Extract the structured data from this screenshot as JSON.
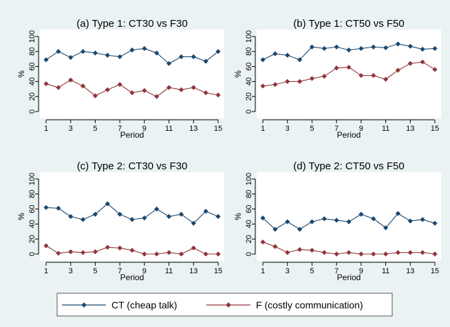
{
  "colors": {
    "background": "#eaf2f3",
    "plot_area": "#ffffff",
    "legend_box": "#ffffff",
    "ct_series": "#1a476f",
    "f_series": "#90353b",
    "axis": "#000000"
  },
  "legend": {
    "placement": "bottom-center",
    "items": [
      {
        "label": "CT (cheap talk)",
        "color": "#1a476f",
        "marker": "diamond"
      },
      {
        "label": "F (costly communication)",
        "color": "#90353b",
        "marker": "diamond"
      }
    ]
  },
  "chart_data": [
    {
      "type": "line",
      "title": "(a) Type 1: CT30 vs F30",
      "xlabel": "Period",
      "ylabel": "%",
      "x": [
        1,
        2,
        3,
        4,
        5,
        6,
        7,
        8,
        9,
        10,
        11,
        12,
        13,
        14,
        15
      ],
      "x_ticks": [
        1,
        3,
        5,
        7,
        9,
        11,
        13,
        15
      ],
      "y_ticks": [
        0,
        20,
        40,
        60,
        80,
        100
      ],
      "xlim": [
        1,
        15
      ],
      "ylim": [
        0,
        100
      ],
      "grid": false,
      "series": [
        {
          "key": "ct",
          "values": [
            69,
            80,
            72,
            80,
            78,
            75,
            73,
            82,
            84,
            78,
            64,
            73,
            73,
            67,
            80
          ]
        },
        {
          "key": "f",
          "values": [
            37,
            32,
            42,
            34,
            21,
            29,
            36,
            25,
            28,
            20,
            32,
            29,
            32,
            25,
            22
          ]
        }
      ]
    },
    {
      "type": "line",
      "title": "(b) Type 1: CT50 vs F50",
      "xlabel": "Period",
      "ylabel": "%",
      "x": [
        1,
        2,
        3,
        4,
        5,
        6,
        7,
        8,
        9,
        10,
        11,
        12,
        13,
        14,
        15
      ],
      "x_ticks": [
        1,
        3,
        5,
        7,
        9,
        11,
        13,
        15
      ],
      "y_ticks": [
        0,
        20,
        40,
        60,
        80,
        100
      ],
      "xlim": [
        1,
        15
      ],
      "ylim": [
        0,
        100
      ],
      "grid": false,
      "series": [
        {
          "key": "ct",
          "values": [
            69,
            77,
            75,
            69,
            86,
            84,
            86,
            82,
            84,
            86,
            85,
            90,
            87,
            83,
            84
          ]
        },
        {
          "key": "f",
          "values": [
            34,
            36,
            40,
            40,
            44,
            47,
            58,
            59,
            48,
            48,
            43,
            55,
            64,
            66,
            56
          ]
        }
      ]
    },
    {
      "type": "line",
      "title": "(c) Type 2: CT30 vs F30",
      "xlabel": "Period",
      "ylabel": "%",
      "x": [
        1,
        2,
        3,
        4,
        5,
        6,
        7,
        8,
        9,
        10,
        11,
        12,
        13,
        14,
        15
      ],
      "x_ticks": [
        1,
        3,
        5,
        7,
        9,
        11,
        13,
        15
      ],
      "y_ticks": [
        0,
        20,
        40,
        60,
        80,
        100
      ],
      "xlim": [
        1,
        15
      ],
      "ylim": [
        0,
        100
      ],
      "grid": false,
      "series": [
        {
          "key": "ct",
          "values": [
            62,
            61,
            50,
            46,
            53,
            67,
            53,
            46,
            48,
            60,
            50,
            53,
            41,
            57,
            50
          ]
        },
        {
          "key": "f",
          "values": [
            11,
            1,
            3,
            2,
            3,
            9,
            8,
            5,
            0,
            0,
            2,
            0,
            8,
            0,
            0
          ]
        }
      ]
    },
    {
      "type": "line",
      "title": "(d) Type 2: CT50 vs F50",
      "xlabel": "Period",
      "ylabel": "%",
      "x": [
        1,
        2,
        3,
        4,
        5,
        6,
        7,
        8,
        9,
        10,
        11,
        12,
        13,
        14,
        15
      ],
      "x_ticks": [
        1,
        3,
        5,
        7,
        9,
        11,
        13,
        15
      ],
      "y_ticks": [
        0,
        20,
        40,
        60,
        80,
        100
      ],
      "xlim": [
        1,
        15
      ],
      "ylim": [
        0,
        100
      ],
      "grid": false,
      "series": [
        {
          "key": "ct",
          "values": [
            48,
            33,
            43,
            33,
            43,
            47,
            45,
            43,
            53,
            47,
            35,
            54,
            44,
            46,
            41
          ]
        },
        {
          "key": "f",
          "values": [
            16,
            10,
            2,
            6,
            5,
            2,
            0,
            2,
            0,
            0,
            0,
            2,
            2,
            2,
            0
          ]
        }
      ]
    }
  ]
}
